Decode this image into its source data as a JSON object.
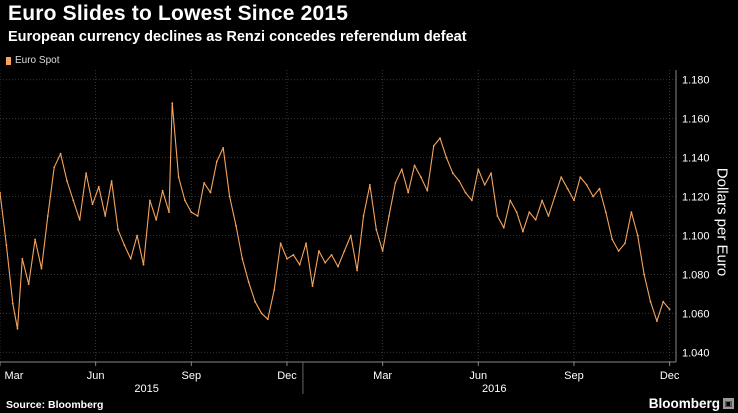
{
  "chart_data": {
    "type": "line",
    "title": "Euro Slides to Lowest Since 2015",
    "subtitle": "European currency declines as Renzi concedes referendum defeat",
    "legend": [
      {
        "label": "Euro Spot",
        "color": "#f6a45d"
      }
    ],
    "ylabel": "Dollars per Euro",
    "xlabel": "",
    "ylim": [
      1.035,
      1.185
    ],
    "y_ticks": [
      1.04,
      1.06,
      1.08,
      1.1,
      1.12,
      1.14,
      1.16,
      1.18
    ],
    "y_tick_labels": [
      "1.040",
      "1.060",
      "1.080",
      "1.100",
      "1.120",
      "1.140",
      "1.160",
      "1.180"
    ],
    "x_range": [
      0,
      21.2
    ],
    "x_ticks": [
      0,
      3,
      6,
      9,
      12,
      15,
      18,
      21
    ],
    "x_tick_labels": [
      "Mar",
      "Jun",
      "Sep",
      "Dec",
      "Mar",
      "Jun",
      "Sep",
      "Dec"
    ],
    "year_labels": [
      {
        "label": "2015",
        "x": 4.6
      },
      {
        "label": "2016",
        "x": 15.5
      }
    ],
    "year_separator_x": 9.5,
    "grid": true,
    "series": [
      {
        "name": "Euro Spot",
        "x": [
          0.0,
          0.2,
          0.4,
          0.55,
          0.7,
          0.9,
          1.1,
          1.3,
          1.5,
          1.7,
          1.9,
          2.1,
          2.3,
          2.5,
          2.7,
          2.9,
          3.1,
          3.3,
          3.5,
          3.7,
          3.9,
          4.1,
          4.3,
          4.5,
          4.7,
          4.9,
          5.1,
          5.3,
          5.4,
          5.6,
          5.8,
          6.0,
          6.2,
          6.4,
          6.6,
          6.8,
          7.0,
          7.2,
          7.4,
          7.6,
          7.8,
          8.0,
          8.2,
          8.4,
          8.6,
          8.8,
          9.0,
          9.2,
          9.4,
          9.6,
          9.8,
          10.0,
          10.2,
          10.4,
          10.6,
          10.8,
          11.0,
          11.2,
          11.4,
          11.6,
          11.8,
          12.0,
          12.2,
          12.4,
          12.6,
          12.8,
          13.0,
          13.2,
          13.4,
          13.6,
          13.8,
          14.0,
          14.2,
          14.4,
          14.6,
          14.8,
          15.0,
          15.2,
          15.4,
          15.6,
          15.8,
          16.0,
          16.2,
          16.4,
          16.6,
          16.8,
          17.0,
          17.2,
          17.4,
          17.6,
          17.8,
          18.0,
          18.2,
          18.4,
          18.6,
          18.8,
          19.0,
          19.2,
          19.4,
          19.6,
          19.8,
          20.0,
          20.2,
          20.4,
          20.6,
          20.8,
          21.0
        ],
        "values": [
          1.122,
          1.095,
          1.065,
          1.052,
          1.088,
          1.075,
          1.098,
          1.083,
          1.11,
          1.135,
          1.142,
          1.128,
          1.118,
          1.108,
          1.132,
          1.116,
          1.125,
          1.11,
          1.128,
          1.103,
          1.095,
          1.088,
          1.1,
          1.085,
          1.118,
          1.108,
          1.123,
          1.112,
          1.168,
          1.13,
          1.118,
          1.112,
          1.11,
          1.127,
          1.122,
          1.138,
          1.145,
          1.12,
          1.105,
          1.088,
          1.076,
          1.066,
          1.06,
          1.057,
          1.072,
          1.096,
          1.088,
          1.09,
          1.085,
          1.096,
          1.074,
          1.092,
          1.086,
          1.09,
          1.084,
          1.092,
          1.1,
          1.082,
          1.11,
          1.126,
          1.103,
          1.092,
          1.11,
          1.127,
          1.134,
          1.122,
          1.136,
          1.13,
          1.123,
          1.146,
          1.15,
          1.14,
          1.132,
          1.128,
          1.122,
          1.118,
          1.134,
          1.126,
          1.132,
          1.11,
          1.104,
          1.118,
          1.112,
          1.102,
          1.112,
          1.108,
          1.118,
          1.11,
          1.12,
          1.13,
          1.124,
          1.118,
          1.13,
          1.126,
          1.12,
          1.124,
          1.112,
          1.098,
          1.092,
          1.096,
          1.112,
          1.1,
          1.08,
          1.066,
          1.056,
          1.066,
          1.062
        ]
      }
    ]
  },
  "footer": {
    "source": "Source: Bloomberg",
    "brand": "Bloomberg",
    "brand_mark": "▣"
  }
}
